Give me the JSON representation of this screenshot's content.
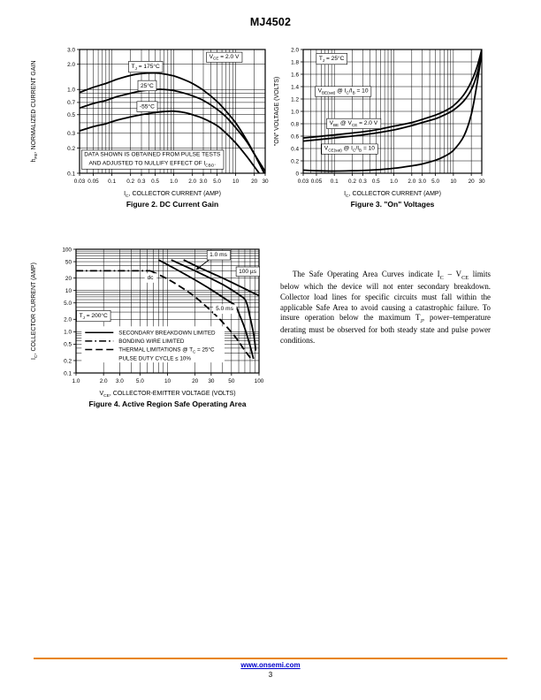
{
  "page": {
    "title": "MJ4502"
  },
  "paragraph": {
    "text": "The Safe Operating Area Curves indicate I~C~ – V~CE~ limits below which the device will not enter secondary breakdown. Collector load lines for specific circuits must fall within the applicable Safe Area to avoid causing a catastrophic failure. To insure operation below the maximum T~J~, power–temperature derating must be observed for both steady state and pulse power conditions."
  },
  "footer": {
    "url": "www.onsemi.com",
    "page_number": "3"
  },
  "chart_data": [
    {
      "name": "fig2",
      "type": "line",
      "title": "Figure 2. DC Current Gain",
      "xlabel": "I~C~, COLLECTOR CURRENT (AMP)",
      "ylabel": "h~FE~, NORMALIZED CURRENT GAIN",
      "x": {
        "scale": "log",
        "min": 0.03,
        "max": 30,
        "ticks": [
          0.03,
          0.05,
          0.1,
          0.2,
          0.3,
          0.5,
          1.0,
          2.0,
          3.0,
          5.0,
          10,
          20,
          30
        ],
        "labels": [
          "0.03",
          "0.05",
          "0.1",
          "0.2",
          "0.3",
          "0.5",
          "1.0",
          "2.0",
          "3.0",
          "5.0",
          "10",
          "20",
          "30"
        ]
      },
      "y": {
        "scale": "log",
        "min": 0.1,
        "max": 3.0,
        "ticks": [
          0.1,
          0.2,
          0.3,
          0.5,
          0.7,
          1.0,
          2.0,
          3.0
        ],
        "labels": [
          "0.1",
          "0.2",
          "0.3",
          "0.5",
          "0.7",
          "1.0",
          "2.0",
          "3.0"
        ]
      },
      "series": [
        {
          "name": "TJ = 175°C",
          "style": "solid",
          "points": [
            [
              0.03,
              0.92
            ],
            [
              0.05,
              1.06
            ],
            [
              0.08,
              1.18
            ],
            [
              0.12,
              1.32
            ],
            [
              0.2,
              1.47
            ],
            [
              0.3,
              1.55
            ],
            [
              0.5,
              1.57
            ],
            [
              0.7,
              1.53
            ],
            [
              1.0,
              1.45
            ],
            [
              1.5,
              1.3
            ],
            [
              2.0,
              1.18
            ],
            [
              3.0,
              0.98
            ],
            [
              5.0,
              0.72
            ],
            [
              7.0,
              0.55
            ],
            [
              10,
              0.4
            ],
            [
              15,
              0.25
            ],
            [
              20,
              0.17
            ],
            [
              30,
              0.095
            ]
          ]
        },
        {
          "name": "25°C",
          "style": "solid",
          "points": [
            [
              0.03,
              0.6
            ],
            [
              0.05,
              0.68
            ],
            [
              0.08,
              0.74
            ],
            [
              0.12,
              0.82
            ],
            [
              0.2,
              0.9
            ],
            [
              0.3,
              0.96
            ],
            [
              0.5,
              1.0
            ],
            [
              0.7,
              1.0
            ],
            [
              1.0,
              0.97
            ],
            [
              1.5,
              0.9
            ],
            [
              2.0,
              0.84
            ],
            [
              3.0,
              0.74
            ],
            [
              5.0,
              0.58
            ],
            [
              7.0,
              0.47
            ],
            [
              10,
              0.35
            ],
            [
              15,
              0.24
            ],
            [
              20,
              0.17
            ],
            [
              30,
              0.105
            ]
          ]
        },
        {
          "name": "-55°C",
          "style": "solid",
          "points": [
            [
              0.03,
              0.32
            ],
            [
              0.05,
              0.36
            ],
            [
              0.08,
              0.39
            ],
            [
              0.12,
              0.43
            ],
            [
              0.2,
              0.47
            ],
            [
              0.3,
              0.5
            ],
            [
              0.5,
              0.53
            ],
            [
              0.7,
              0.545
            ],
            [
              1.0,
              0.55
            ],
            [
              1.5,
              0.53
            ],
            [
              2.0,
              0.5
            ],
            [
              3.0,
              0.45
            ],
            [
              5.0,
              0.37
            ],
            [
              7.0,
              0.3
            ],
            [
              10,
              0.23
            ],
            [
              15,
              0.16
            ],
            [
              20,
              0.12
            ],
            [
              30,
              0.08
            ]
          ]
        }
      ],
      "annotations": [
        {
          "text": "V~CE~ = 2.0 V",
          "at": [
            6.5,
            2.5
          ],
          "box": true
        },
        {
          "text": "T~J~ = 175°C",
          "at": [
            0.35,
            1.9
          ],
          "box": true
        },
        {
          "text": "25°C",
          "at": [
            0.37,
            1.12
          ],
          "box": true
        },
        {
          "text": "-55°C",
          "at": [
            0.37,
            0.63
          ],
          "box": true
        },
        {
          "lines": [
            "DATA SHOWN IS OBTAINED FROM PULSE TESTS",
            "AND ADJUSTED TO NULLIFY EFFECT OF I~CBO~."
          ],
          "at": [
            0.45,
            0.15
          ],
          "box": true
        }
      ]
    },
    {
      "name": "fig3",
      "type": "line",
      "title": "Figure 3. \"On\" Voltages",
      "xlabel": "I~C~, COLLECTOR CURRENT (AMP)",
      "ylabel": "\"ON\" VOLTAGE (VOLTS)",
      "x": {
        "scale": "log",
        "min": 0.03,
        "max": 30,
        "ticks": [
          0.03,
          0.05,
          0.1,
          0.2,
          0.3,
          0.5,
          1.0,
          2.0,
          3.0,
          5.0,
          10,
          20,
          30
        ],
        "labels": [
          "0.03",
          "0.05",
          "0.1",
          "0.2",
          "0.3",
          "0.5",
          "1.0",
          "2.0",
          "3.0",
          "5.0",
          "10",
          "20",
          "30"
        ]
      },
      "y": {
        "scale": "linear",
        "min": 0,
        "max": 2.0,
        "ticks": [
          0,
          0.2,
          0.4,
          0.6,
          0.8,
          1.0,
          1.2,
          1.4,
          1.6,
          1.8,
          2.0
        ],
        "labels": [
          "0",
          "0.2",
          "0.4",
          "0.6",
          "0.8",
          "1.0",
          "1.2",
          "1.4",
          "1.6",
          "1.8",
          "2.0"
        ]
      },
      "series": [
        {
          "name": "VBE(sat) @ IC/IB = 10",
          "style": "solid",
          "points": [
            [
              0.03,
              0.57
            ],
            [
              0.05,
              0.59
            ],
            [
              0.1,
              0.62
            ],
            [
              0.2,
              0.65
            ],
            [
              0.3,
              0.67
            ],
            [
              0.5,
              0.7
            ],
            [
              1.0,
              0.76
            ],
            [
              2.0,
              0.82
            ],
            [
              3.0,
              0.87
            ],
            [
              5.0,
              0.94
            ],
            [
              7.0,
              1.0
            ],
            [
              10,
              1.09
            ],
            [
              15,
              1.27
            ],
            [
              20,
              1.48
            ],
            [
              25,
              1.72
            ],
            [
              30,
              2.0
            ]
          ]
        },
        {
          "name": "VBE @ VCE = 2.0 V",
          "style": "solid",
          "points": [
            [
              0.03,
              0.52
            ],
            [
              0.05,
              0.54
            ],
            [
              0.1,
              0.57
            ],
            [
              0.2,
              0.6
            ],
            [
              0.3,
              0.62
            ],
            [
              0.5,
              0.65
            ],
            [
              1.0,
              0.7
            ],
            [
              2.0,
              0.77
            ],
            [
              3.0,
              0.82
            ],
            [
              5.0,
              0.88
            ],
            [
              7.0,
              0.94
            ],
            [
              10,
              1.02
            ],
            [
              15,
              1.17
            ],
            [
              20,
              1.35
            ],
            [
              25,
              1.6
            ],
            [
              30,
              1.93
            ]
          ]
        },
        {
          "name": "VCE(sat) @ IC/IB = 10",
          "style": "solid",
          "points": [
            [
              0.03,
              0.05
            ],
            [
              0.05,
              0.04
            ],
            [
              0.1,
              0.035
            ],
            [
              0.2,
              0.04
            ],
            [
              0.3,
              0.045
            ],
            [
              0.5,
              0.055
            ],
            [
              1.0,
              0.08
            ],
            [
              2.0,
              0.12
            ],
            [
              3.0,
              0.15
            ],
            [
              5.0,
              0.21
            ],
            [
              7.0,
              0.27
            ],
            [
              10,
              0.37
            ],
            [
              15,
              0.6
            ],
            [
              20,
              0.95
            ],
            [
              25,
              1.45
            ],
            [
              30,
              1.95
            ]
          ]
        }
      ],
      "annotations": [
        {
          "text": "T~J~ = 25°C",
          "at": [
            0.09,
            1.86
          ],
          "box": true
        },
        {
          "text": "V~BE(sat)~ @ I~C~/I~B~ = 10",
          "at": [
            0.14,
            1.34
          ],
          "box": true
        },
        {
          "text": "V~BE~ @ V~CE~ = 2.0 V",
          "at": [
            0.21,
            0.82
          ],
          "box": true
        },
        {
          "text": "V~CE(sat)~ @ I~C~/I~B~ = 10",
          "at": [
            0.18,
            0.41
          ],
          "box": true
        }
      ]
    },
    {
      "name": "fig4",
      "type": "line",
      "title": "Figure 4. Active Region Safe Operating Area",
      "xlabel": "V~CE~, COLLECTOR-EMITTER VOLTAGE (VOLTS)",
      "ylabel": "I~C~, COLLECTOR CURRENT (AMP)",
      "x": {
        "scale": "log",
        "min": 1.0,
        "max": 100,
        "ticks": [
          1.0,
          2.0,
          3.0,
          5.0,
          10,
          20,
          30,
          50,
          100
        ],
        "labels": [
          "1.0",
          "2.0",
          "3.0",
          "5.0",
          "10",
          "20",
          "30",
          "50",
          "100"
        ]
      },
      "y": {
        "scale": "log",
        "min": 0.1,
        "max": 100,
        "ticks": [
          0.1,
          0.2,
          0.5,
          1.0,
          2.0,
          5.0,
          10,
          20,
          50,
          100
        ],
        "labels": [
          "0.1",
          "0.2",
          "0.5",
          "1.0",
          "2.0",
          "5.0",
          "10",
          "20",
          "50",
          "100"
        ]
      },
      "series": [
        {
          "name": "bonding wire limit",
          "style": "dashdot",
          "points": [
            [
              1.0,
              30
            ],
            [
              6.5,
              30
            ]
          ]
        },
        {
          "name": "dc",
          "style": "dash",
          "points": [
            [
              6.5,
              30
            ],
            [
              10,
              19
            ],
            [
              15,
              11
            ],
            [
              20,
              7
            ],
            [
              30,
              3.2
            ],
            [
              40,
              1.7
            ],
            [
              55,
              0.75
            ],
            [
              70,
              0.35
            ],
            [
              85,
              0.2
            ]
          ]
        },
        {
          "name": "5.0 ms",
          "style": "solid",
          "points": [
            [
              8,
              55
            ],
            [
              12,
              34
            ],
            [
              20,
              18
            ],
            [
              30,
              10.5
            ],
            [
              45,
              5.8
            ],
            [
              55,
              4.3
            ],
            [
              62,
              2.4
            ],
            [
              70,
              1.2
            ],
            [
              80,
              0.45
            ],
            [
              87,
              0.22
            ]
          ]
        },
        {
          "name": "1.0 ms",
          "style": "solid",
          "points": [
            [
              11,
              55
            ],
            [
              20,
              30
            ],
            [
              40,
              14
            ],
            [
              60,
              8
            ],
            [
              72,
              5.5
            ],
            [
              80,
              2.2
            ],
            [
              88,
              0.8
            ],
            [
              92,
              0.35
            ]
          ]
        },
        {
          "name": "100 µs",
          "style": "solid",
          "points": [
            [
              15,
              55
            ],
            [
              25,
              32
            ],
            [
              40,
              20
            ],
            [
              60,
              13
            ],
            [
              80,
              9.5
            ],
            [
              100,
              7.5
            ]
          ]
        }
      ],
      "annotations": [
        {
          "text": "T~J~ = 200°C",
          "at": [
            1.55,
            2.5
          ],
          "box": true
        },
        {
          "text": "dc",
          "at": [
            6.5,
            21
          ],
          "box": false
        },
        {
          "text": "1.0 ms",
          "at": [
            36,
            75
          ],
          "box": true,
          "arrow_to": [
            20.5,
            32
          ]
        },
        {
          "text": "100 µs",
          "at": [
            75,
            30
          ],
          "box": true
        },
        {
          "text": "5.0 ms",
          "at": [
            42,
            3.7
          ],
          "box": false
        }
      ],
      "legend": {
        "area": [
          1.15,
          1.35,
          42,
          0.18
        ],
        "items": [
          {
            "style": "solid",
            "label": "SECONDARY BREAKDOWN LIMITED"
          },
          {
            "style": "dashdot",
            "label": "BONDING WIRE LIMITED"
          },
          {
            "style": "dash",
            "label": "THERMAL LIMITATIONS @ T~C~ = 25°C"
          },
          {
            "style": "none",
            "label": "PULSE DUTY CYCLE ≤ 10%"
          }
        ]
      }
    }
  ]
}
